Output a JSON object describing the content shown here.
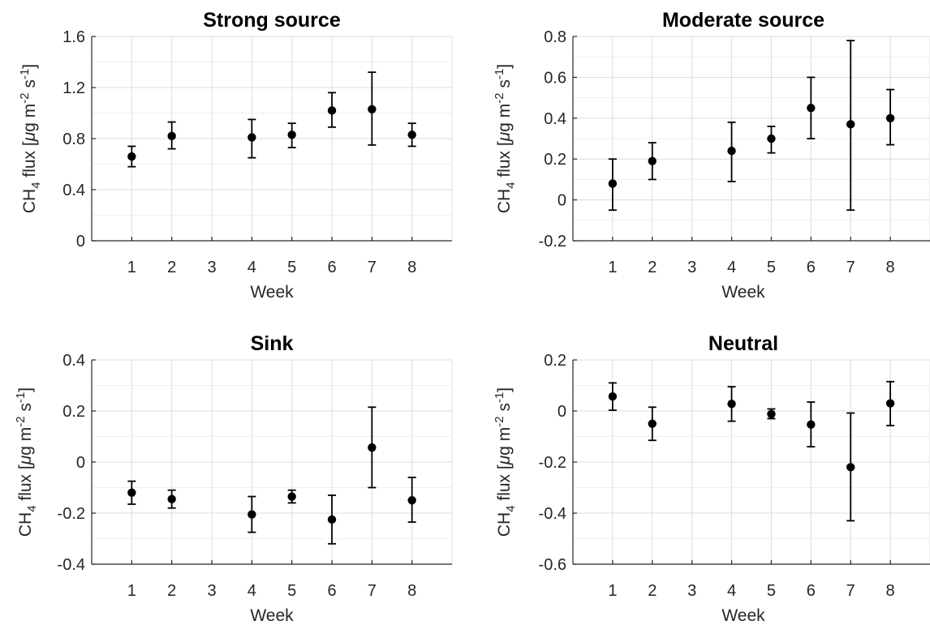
{
  "chart_data": [
    {
      "type": "scatter",
      "title": "Strong source",
      "xlabel": "Week",
      "ylabel_main": "CH",
      "ylabel_sub": "4",
      "ylabel_rest": " flux [",
      "ylabel_mu": "μ",
      "ylabel_unit": "g m",
      "ylabel_exp1": "-2",
      "ylabel_s": " s",
      "ylabel_exp2": "-1",
      "ylabel_close": "]",
      "xlim": [
        0,
        9
      ],
      "ylim": [
        0,
        1.6
      ],
      "xticks": [
        1,
        2,
        3,
        4,
        5,
        6,
        7,
        8
      ],
      "yticks": [
        0,
        0.4,
        0.8,
        1.2,
        1.6
      ],
      "ytick_labels": [
        "0",
        "0.4",
        "0.8",
        "1.2",
        "1.6"
      ],
      "grid": true,
      "points": [
        {
          "x": 1,
          "y": 0.66,
          "low": 0.58,
          "high": 0.74
        },
        {
          "x": 2,
          "y": 0.82,
          "low": 0.72,
          "high": 0.93
        },
        {
          "x": 4,
          "y": 0.81,
          "low": 0.65,
          "high": 0.95
        },
        {
          "x": 5,
          "y": 0.83,
          "low": 0.73,
          "high": 0.92
        },
        {
          "x": 6,
          "y": 1.02,
          "low": 0.89,
          "high": 1.16
        },
        {
          "x": 7,
          "y": 1.03,
          "low": 0.75,
          "high": 1.32
        },
        {
          "x": 8,
          "y": 0.83,
          "low": 0.74,
          "high": 0.92
        }
      ]
    },
    {
      "type": "scatter",
      "title": "Moderate source",
      "xlabel": "Week",
      "ylabel_main": "CH",
      "ylabel_sub": "4",
      "ylabel_rest": " flux [",
      "ylabel_mu": "μ",
      "ylabel_unit": "g m",
      "ylabel_exp1": "-2",
      "ylabel_s": " s",
      "ylabel_exp2": "-1",
      "ylabel_close": "]",
      "xlim": [
        0,
        9
      ],
      "ylim": [
        -0.2,
        0.8
      ],
      "xticks": [
        1,
        2,
        3,
        4,
        5,
        6,
        7,
        8
      ],
      "yticks": [
        -0.2,
        0,
        0.2,
        0.4,
        0.6,
        0.8
      ],
      "ytick_labels": [
        "-0.2",
        "0",
        "0.2",
        "0.4",
        "0.6",
        "0.8"
      ],
      "grid": true,
      "points": [
        {
          "x": 1,
          "y": 0.08,
          "low": -0.05,
          "high": 0.2
        },
        {
          "x": 2,
          "y": 0.19,
          "low": 0.1,
          "high": 0.28
        },
        {
          "x": 4,
          "y": 0.24,
          "low": 0.09,
          "high": 0.38
        },
        {
          "x": 5,
          "y": 0.3,
          "low": 0.23,
          "high": 0.36
        },
        {
          "x": 6,
          "y": 0.45,
          "low": 0.3,
          "high": 0.6
        },
        {
          "x": 7,
          "y": 0.37,
          "low": -0.05,
          "high": 0.78
        },
        {
          "x": 8,
          "y": 0.4,
          "low": 0.27,
          "high": 0.54
        }
      ]
    },
    {
      "type": "scatter",
      "title": "Sink",
      "xlabel": "Week",
      "ylabel_main": "CH",
      "ylabel_sub": "4",
      "ylabel_rest": " flux [",
      "ylabel_mu": "μ",
      "ylabel_unit": "g m",
      "ylabel_exp1": "-2",
      "ylabel_s": " s",
      "ylabel_exp2": "-1",
      "ylabel_close": "]",
      "xlim": [
        0,
        9
      ],
      "ylim": [
        -0.4,
        0.4
      ],
      "xticks": [
        1,
        2,
        3,
        4,
        5,
        6,
        7,
        8
      ],
      "yticks": [
        -0.4,
        -0.2,
        0,
        0.2,
        0.4
      ],
      "ytick_labels": [
        "-0.4",
        "-0.2",
        "0",
        "0.2",
        "0.4"
      ],
      "grid": true,
      "points": [
        {
          "x": 1,
          "y": -0.12,
          "low": -0.165,
          "high": -0.075
        },
        {
          "x": 2,
          "y": -0.145,
          "low": -0.18,
          "high": -0.11
        },
        {
          "x": 4,
          "y": -0.205,
          "low": -0.275,
          "high": -0.135
        },
        {
          "x": 5,
          "y": -0.135,
          "low": -0.16,
          "high": -0.11
        },
        {
          "x": 6,
          "y": -0.225,
          "low": -0.32,
          "high": -0.13
        },
        {
          "x": 7,
          "y": 0.057,
          "low": -0.1,
          "high": 0.215
        },
        {
          "x": 8,
          "y": -0.15,
          "low": -0.235,
          "high": -0.06
        }
      ]
    },
    {
      "type": "scatter",
      "title": "Neutral",
      "xlabel": "Week",
      "ylabel_main": "CH",
      "ylabel_sub": "4",
      "ylabel_rest": " flux [",
      "ylabel_mu": "μ",
      "ylabel_unit": "g m",
      "ylabel_exp1": "-2",
      "ylabel_s": " s",
      "ylabel_exp2": "-1",
      "ylabel_close": "]",
      "xlim": [
        0,
        9
      ],
      "ylim": [
        -0.6,
        0.2
      ],
      "xticks": [
        1,
        2,
        3,
        4,
        5,
        6,
        7,
        8
      ],
      "yticks": [
        -0.6,
        -0.4,
        -0.2,
        0,
        0.2
      ],
      "ytick_labels": [
        "-0.6",
        "-0.4",
        "-0.2",
        "0",
        "0.2"
      ],
      "grid": true,
      "points": [
        {
          "x": 1,
          "y": 0.057,
          "low": 0.003,
          "high": 0.11
        },
        {
          "x": 2,
          "y": -0.05,
          "low": -0.115,
          "high": 0.015
        },
        {
          "x": 4,
          "y": 0.028,
          "low": -0.04,
          "high": 0.095
        },
        {
          "x": 5,
          "y": -0.012,
          "low": -0.03,
          "high": 0.008
        },
        {
          "x": 6,
          "y": -0.053,
          "low": -0.14,
          "high": 0.035
        },
        {
          "x": 7,
          "y": -0.22,
          "low": -0.43,
          "high": -0.008
        },
        {
          "x": 8,
          "y": 0.03,
          "low": -0.057,
          "high": 0.115
        }
      ]
    }
  ]
}
